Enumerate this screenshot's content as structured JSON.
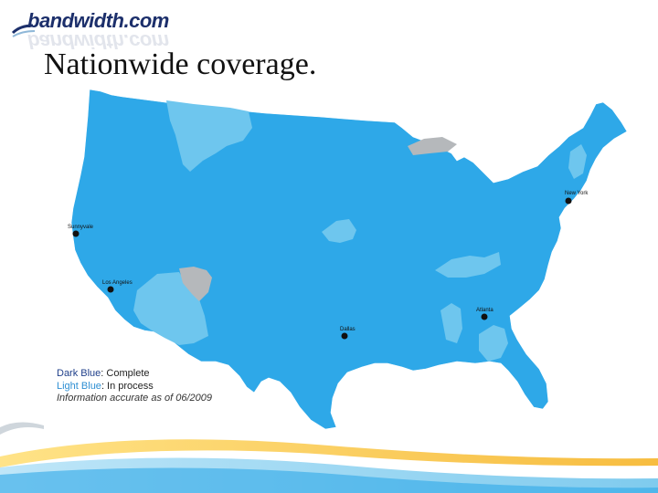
{
  "logo": {
    "text": "bandwidth.com"
  },
  "title": "Nationwide coverage.",
  "legend": {
    "dark_label": "Dark Blue",
    "dark_value": ": Complete",
    "light_label": "Light Blue",
    "light_value": ": In process",
    "note": "Information accurate as of 06/2009"
  },
  "cities": [
    "Sunnyvale",
    "Los Angeles",
    "Dallas",
    "Atlanta",
    "New York"
  ],
  "colors": {
    "complete": "#2ea8e8",
    "in_process": "#6ec6ee",
    "not_covered": "#b5b8bb",
    "logo": "#1c2f6b"
  }
}
